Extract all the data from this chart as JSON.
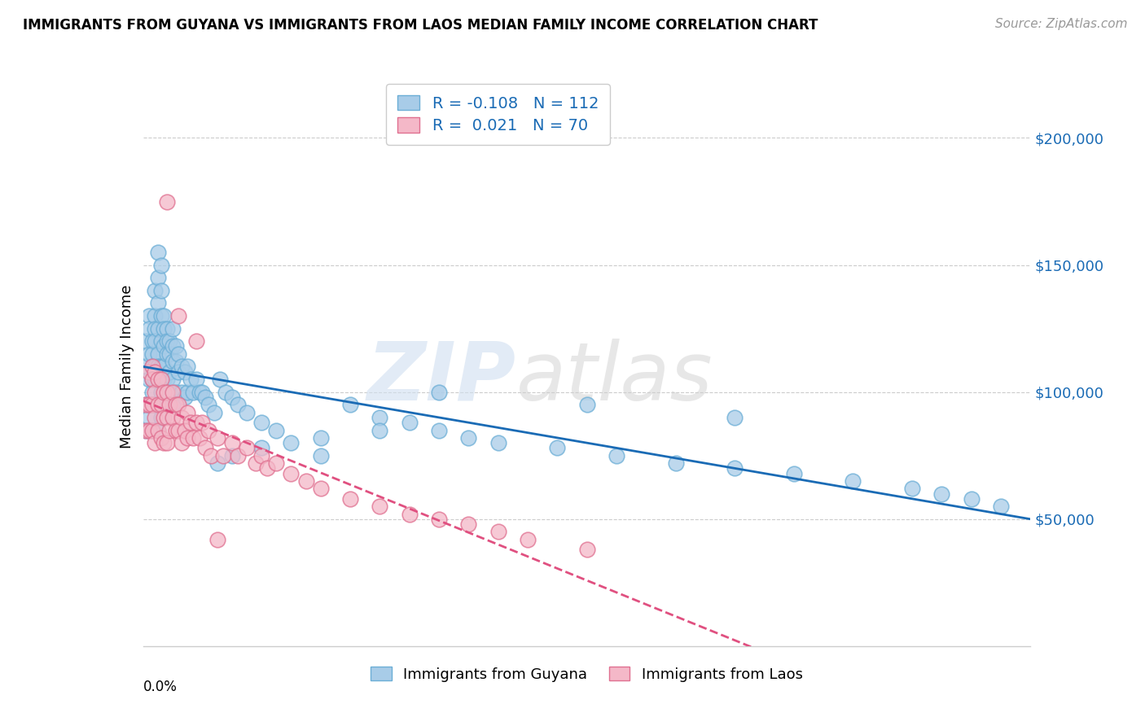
{
  "title": "IMMIGRANTS FROM GUYANA VS IMMIGRANTS FROM LAOS MEDIAN FAMILY INCOME CORRELATION CHART",
  "source": "Source: ZipAtlas.com",
  "ylabel": "Median Family Income",
  "yticks": [
    50000,
    100000,
    150000,
    200000
  ],
  "ytick_labels": [
    "$50,000",
    "$100,000",
    "$150,000",
    "$200,000"
  ],
  "xlim": [
    0.0,
    0.3
  ],
  "ylim": [
    0,
    220000
  ],
  "guyana_color": "#a8cce8",
  "guyana_edge": "#6baed6",
  "laos_color": "#f4b8c8",
  "laos_edge": "#e07090",
  "guyana_line_color": "#1a6bb5",
  "laos_line_color": "#e05080",
  "legend_guyana_label": "Immigrants from Guyana",
  "legend_laos_label": "Immigrants from Laos",
  "R_guyana": -0.108,
  "N_guyana": 112,
  "R_laos": 0.021,
  "N_laos": 70,
  "watermark_part1": "ZIP",
  "watermark_part2": "atlas",
  "guyana_x": [
    0.001,
    0.001,
    0.001,
    0.001,
    0.002,
    0.002,
    0.002,
    0.002,
    0.002,
    0.002,
    0.003,
    0.003,
    0.003,
    0.003,
    0.003,
    0.003,
    0.003,
    0.004,
    0.004,
    0.004,
    0.004,
    0.004,
    0.004,
    0.004,
    0.005,
    0.005,
    0.005,
    0.005,
    0.005,
    0.005,
    0.005,
    0.005,
    0.005,
    0.006,
    0.006,
    0.006,
    0.006,
    0.006,
    0.006,
    0.006,
    0.007,
    0.007,
    0.007,
    0.007,
    0.007,
    0.007,
    0.008,
    0.008,
    0.008,
    0.008,
    0.008,
    0.009,
    0.009,
    0.009,
    0.009,
    0.01,
    0.01,
    0.01,
    0.01,
    0.01,
    0.011,
    0.011,
    0.011,
    0.012,
    0.012,
    0.013,
    0.013,
    0.014,
    0.014,
    0.015,
    0.015,
    0.016,
    0.017,
    0.018,
    0.019,
    0.02,
    0.021,
    0.022,
    0.024,
    0.026,
    0.028,
    0.03,
    0.032,
    0.035,
    0.04,
    0.045,
    0.05,
    0.06,
    0.07,
    0.08,
    0.09,
    0.1,
    0.11,
    0.12,
    0.14,
    0.16,
    0.18,
    0.2,
    0.22,
    0.24,
    0.26,
    0.27,
    0.28,
    0.29,
    0.1,
    0.15,
    0.2,
    0.08,
    0.06,
    0.04,
    0.03,
    0.025
  ],
  "guyana_y": [
    95000,
    110000,
    120000,
    85000,
    130000,
    125000,
    115000,
    105000,
    90000,
    95000,
    120000,
    115000,
    110000,
    105000,
    100000,
    95000,
    85000,
    140000,
    130000,
    125000,
    120000,
    110000,
    105000,
    95000,
    155000,
    145000,
    135000,
    125000,
    115000,
    110000,
    105000,
    95000,
    85000,
    150000,
    140000,
    130000,
    120000,
    110000,
    100000,
    90000,
    130000,
    125000,
    118000,
    110000,
    105000,
    95000,
    125000,
    120000,
    115000,
    105000,
    95000,
    120000,
    115000,
    108000,
    100000,
    125000,
    118000,
    112000,
    105000,
    95000,
    118000,
    112000,
    100000,
    115000,
    108000,
    110000,
    100000,
    108000,
    98000,
    110000,
    100000,
    105000,
    100000,
    105000,
    100000,
    100000,
    98000,
    95000,
    92000,
    105000,
    100000,
    98000,
    95000,
    92000,
    88000,
    85000,
    80000,
    75000,
    95000,
    90000,
    88000,
    85000,
    82000,
    80000,
    78000,
    75000,
    72000,
    70000,
    68000,
    65000,
    62000,
    60000,
    58000,
    55000,
    100000,
    95000,
    90000,
    85000,
    82000,
    78000,
    75000,
    72000
  ],
  "laos_x": [
    0.001,
    0.001,
    0.002,
    0.002,
    0.002,
    0.003,
    0.003,
    0.003,
    0.003,
    0.004,
    0.004,
    0.004,
    0.004,
    0.005,
    0.005,
    0.005,
    0.006,
    0.006,
    0.006,
    0.007,
    0.007,
    0.007,
    0.008,
    0.008,
    0.008,
    0.009,
    0.009,
    0.01,
    0.01,
    0.011,
    0.011,
    0.012,
    0.012,
    0.013,
    0.013,
    0.014,
    0.015,
    0.015,
    0.016,
    0.017,
    0.018,
    0.019,
    0.02,
    0.021,
    0.022,
    0.023,
    0.025,
    0.027,
    0.03,
    0.032,
    0.035,
    0.038,
    0.04,
    0.042,
    0.045,
    0.05,
    0.055,
    0.06,
    0.07,
    0.08,
    0.09,
    0.1,
    0.11,
    0.12,
    0.13,
    0.15,
    0.008,
    0.012,
    0.018,
    0.025
  ],
  "laos_y": [
    95000,
    85000,
    108000,
    95000,
    85000,
    110000,
    105000,
    95000,
    85000,
    108000,
    100000,
    90000,
    80000,
    105000,
    95000,
    85000,
    105000,
    95000,
    82000,
    100000,
    90000,
    80000,
    100000,
    90000,
    80000,
    95000,
    85000,
    100000,
    90000,
    95000,
    85000,
    95000,
    85000,
    90000,
    80000,
    85000,
    92000,
    82000,
    88000,
    82000,
    88000,
    82000,
    88000,
    78000,
    85000,
    75000,
    82000,
    75000,
    80000,
    75000,
    78000,
    72000,
    75000,
    70000,
    72000,
    68000,
    65000,
    62000,
    58000,
    55000,
    52000,
    50000,
    48000,
    45000,
    42000,
    38000,
    175000,
    130000,
    120000,
    42000
  ]
}
